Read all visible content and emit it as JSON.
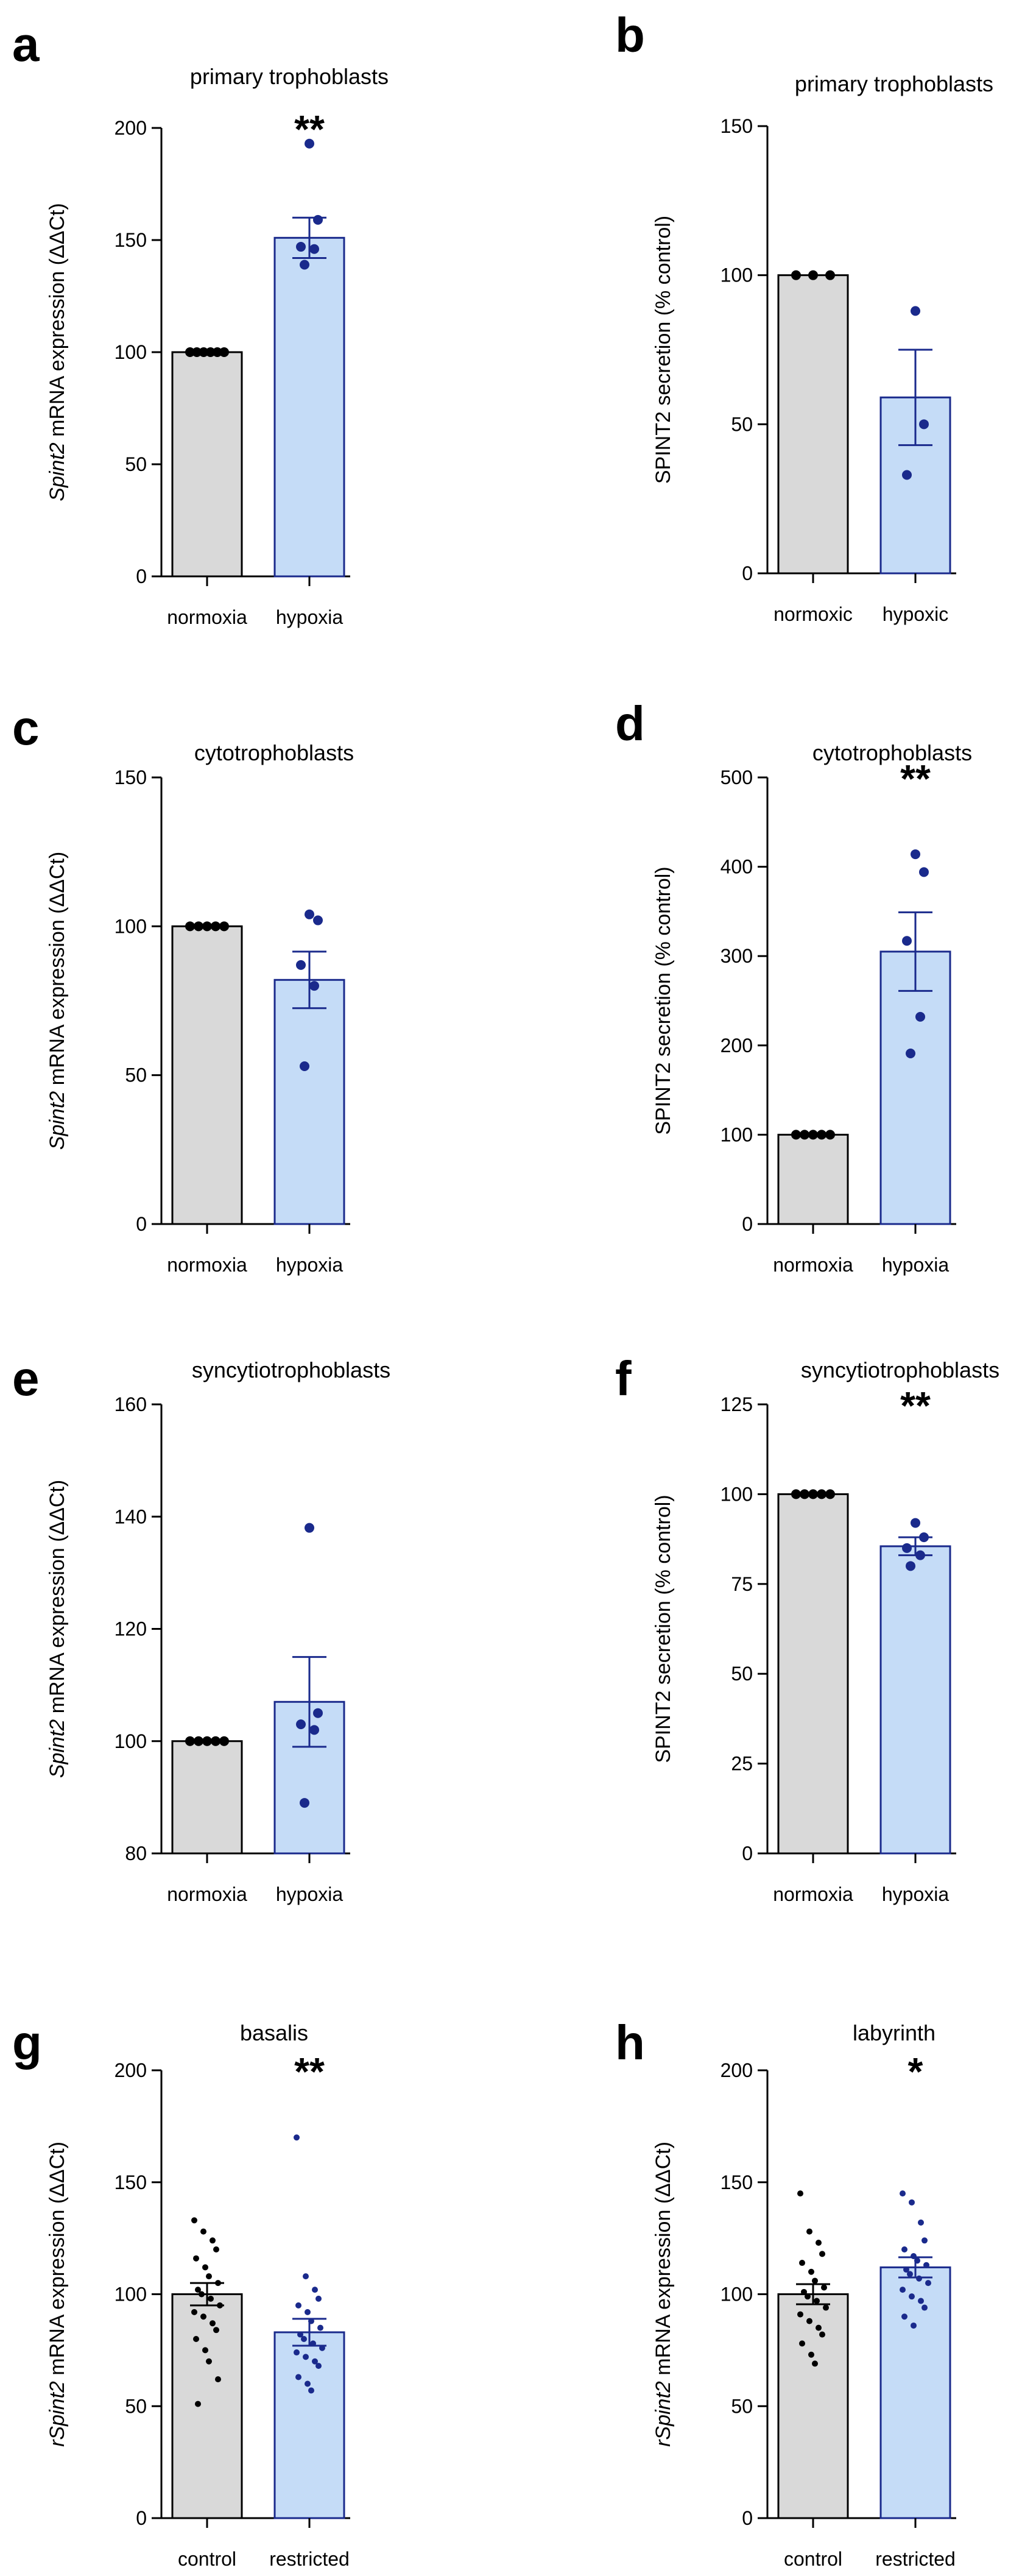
{
  "colors": {
    "control_fill": "#d9d9d9",
    "control_stroke": "#000000",
    "treated_fill": "#c5dcf7",
    "treated_stroke": "#1a2a8c",
    "control_dot": "#000000",
    "treated_dot": "#1a2a8c"
  },
  "chart_data": [
    {
      "panel": "a",
      "type": "bar",
      "title": "primary trophoblasts",
      "ylabel_italic": "Spint2",
      "ylabel_rest": " mRNA expression (ΔΔCt)",
      "ylim": [
        0,
        200
      ],
      "yticks": [
        0,
        50,
        100,
        150,
        200
      ],
      "categories": [
        "normoxia",
        "hypoxia"
      ],
      "values": [
        100,
        151
      ],
      "errors": [
        0,
        9
      ],
      "points": [
        [
          100,
          100,
          100,
          100,
          100,
          100
        ],
        [
          193,
          159,
          147,
          146,
          139
        ]
      ],
      "significance": "**"
    },
    {
      "panel": "b",
      "type": "bar",
      "title": "primary trophoblasts",
      "ylabel_italic": "",
      "ylabel_rest": "SPINT2 secretion (% control)",
      "ylim": [
        0,
        150
      ],
      "yticks": [
        0,
        50,
        100,
        150
      ],
      "categories": [
        "normoxic",
        "hypoxic"
      ],
      "values": [
        100,
        59
      ],
      "errors": [
        0,
        16
      ],
      "points": [
        [
          100,
          100,
          100
        ],
        [
          88,
          50,
          33
        ]
      ],
      "significance": ""
    },
    {
      "panel": "c",
      "type": "bar",
      "title": "cytotrophoblasts",
      "ylabel_italic": "Spint2",
      "ylabel_rest": " mRNA expression (ΔΔCt)",
      "ylim": [
        0,
        150
      ],
      "yticks": [
        0,
        50,
        100,
        150
      ],
      "categories": [
        "normoxia",
        "hypoxia"
      ],
      "values": [
        100,
        82
      ],
      "errors": [
        0,
        9.5
      ],
      "points": [
        [
          100,
          100,
          100,
          100,
          100
        ],
        [
          104,
          102,
          87,
          80,
          53
        ]
      ],
      "significance": ""
    },
    {
      "panel": "d",
      "type": "bar",
      "title": "cytotrophoblasts",
      "ylabel_italic": "",
      "ylabel_rest": "SPINT2 secretion (% control)",
      "ylim": [
        0,
        500
      ],
      "yticks": [
        0,
        100,
        200,
        300,
        400,
        500
      ],
      "categories": [
        "normoxia",
        "hypoxia"
      ],
      "values": [
        100,
        305
      ],
      "errors": [
        0,
        44
      ],
      "points": [
        [
          100,
          100,
          100,
          100,
          100
        ],
        [
          414,
          394,
          317,
          232,
          191
        ]
      ],
      "significance": "**"
    },
    {
      "panel": "e",
      "type": "bar",
      "title": "syncytiotrophoblasts",
      "ylabel_italic": "Spint2",
      "ylabel_rest": " mRNA expression (ΔΔCt)",
      "ylim": [
        80,
        160
      ],
      "yticks": [
        80,
        100,
        120,
        140,
        160
      ],
      "categories": [
        "normoxia",
        "hypoxia"
      ],
      "values": [
        100,
        107
      ],
      "errors": [
        0,
        8
      ],
      "points": [
        [
          100,
          100,
          100,
          100,
          100
        ],
        [
          138,
          105,
          103,
          102,
          89
        ]
      ],
      "significance": ""
    },
    {
      "panel": "f",
      "type": "bar",
      "title": "syncytiotrophoblasts",
      "ylabel_italic": "",
      "ylabel_rest": "SPINT2 secretion (% control)",
      "ylim": [
        0,
        125
      ],
      "yticks": [
        0,
        25,
        50,
        75,
        100,
        125
      ],
      "categories": [
        "normoxia",
        "hypoxia"
      ],
      "values": [
        100,
        85.5
      ],
      "errors": [
        0,
        2.5
      ],
      "points": [
        [
          100,
          100,
          100,
          100,
          100
        ],
        [
          92,
          88,
          85,
          83,
          80
        ]
      ],
      "significance": "**"
    },
    {
      "panel": "g",
      "type": "bar",
      "title": "basalis",
      "ylabel_italic": "rSpint2",
      "ylabel_rest": " mRNA expression (ΔΔCt)",
      "ylim": [
        0,
        200
      ],
      "yticks": [
        0,
        50,
        100,
        150,
        200
      ],
      "categories": [
        "control",
        "restricted"
      ],
      "values": [
        100,
        83
      ],
      "errors": [
        5,
        6
      ],
      "points": [
        [
          133,
          128,
          124,
          120,
          116,
          112,
          108,
          105,
          102,
          100,
          98,
          95,
          92,
          90,
          87,
          84,
          80,
          75,
          70,
          62,
          51
        ],
        [
          170,
          108,
          102,
          98,
          95,
          92,
          88,
          85,
          82,
          80,
          78,
          76,
          74,
          72,
          70,
          68,
          63,
          60,
          57
        ]
      ],
      "significance": "**"
    },
    {
      "panel": "h",
      "type": "bar",
      "title": "labyrinth",
      "ylabel_italic": "rSpint2",
      "ylabel_rest": " mRNA expression (ΔΔCt)",
      "ylim": [
        0,
        200
      ],
      "yticks": [
        0,
        50,
        100,
        150,
        200
      ],
      "categories": [
        "control",
        "restricted"
      ],
      "values": [
        100,
        112
      ],
      "errors": [
        4.5,
        4.5
      ],
      "points": [
        [
          145,
          128,
          123,
          118,
          114,
          110,
          106,
          103,
          101,
          99,
          97,
          94,
          91,
          88,
          85,
          82,
          78,
          73,
          69
        ],
        [
          145,
          141,
          132,
          124,
          120,
          117,
          115,
          113,
          111,
          109,
          107,
          105,
          102,
          99,
          97,
          94,
          90,
          86
        ]
      ],
      "significance": "*"
    }
  ]
}
